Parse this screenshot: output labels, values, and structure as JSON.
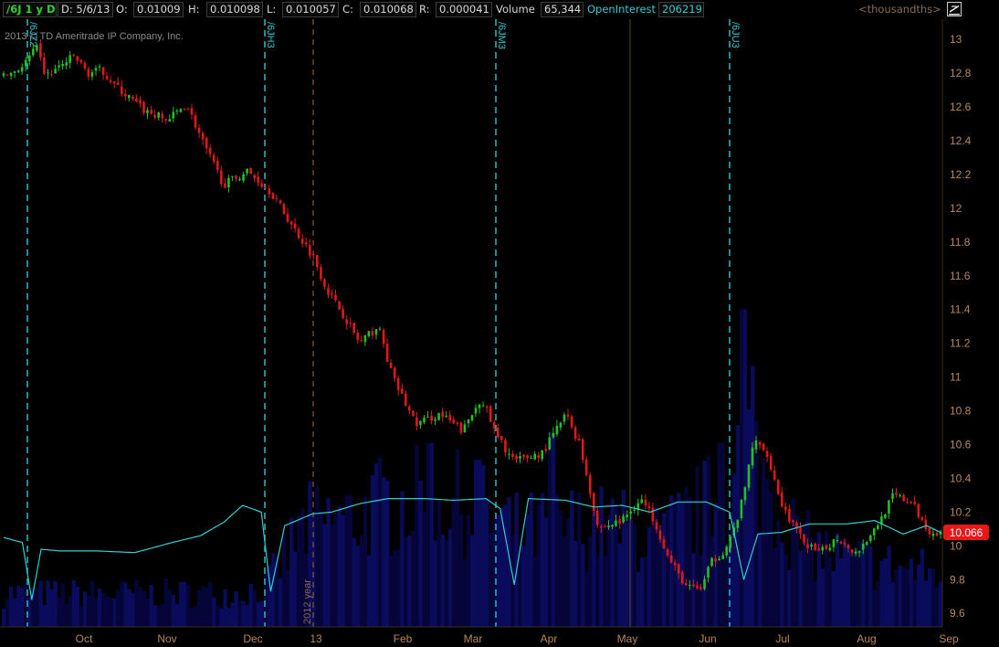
{
  "header": {
    "symbol": "/6J 1 y D",
    "date_label": "D: 5/6/13",
    "open_label": "O:",
    "open_value": "0.01009",
    "high_label": "H:",
    "high_value": "0.010098",
    "low_label": "L:",
    "low_value": "0.010057",
    "close_label": "C:",
    "close_value": "0.010068",
    "range_label": "R:",
    "range_value": "0.000041",
    "volume_label": "Volume",
    "volume_value": "65,344",
    "oi_label": "OpenInterest",
    "oi_value": "206219",
    "units": "<thousandths>"
  },
  "copyright": "2013 © TD Ameritrade IP Company, Inc.",
  "last_price": "10.066",
  "colors": {
    "up": "#22c022",
    "down": "#e01818",
    "volume": "#0b0b5c",
    "volume_dark": "#05053a",
    "open_interest": "#30d0d0",
    "axis_text": "#b8865a",
    "price_bubble": "#e81818",
    "rollover_line": "#30c8d0",
    "year_line": "#8a5a2a"
  },
  "chart_data": {
    "type": "candlestick",
    "y_axis": {
      "ticks": [
        "13",
        "12.8",
        "12.6",
        "12.4",
        "12.2",
        "12",
        "11.8",
        "11.6",
        "11.4",
        "11.2",
        "11",
        "10.8",
        "10.6",
        "10.4",
        "10.2",
        "10",
        "9.8",
        "9.6"
      ],
      "range": [
        9.52,
        13.12
      ]
    },
    "x_axis": {
      "labels": [
        "Oct",
        "Nov",
        "Dec",
        "13",
        "Feb",
        "Mar",
        "Apr",
        "May",
        "Jun",
        "Jul",
        "Aug",
        "Sep"
      ]
    },
    "rollover_markers": [
      "/6JZ2",
      "/6JH3",
      "/6JM3",
      "/6JU3"
    ],
    "year_marker": "2012 year",
    "price_path": [
      {
        "t": 0,
        "v": 12.78
      },
      {
        "t": 0.02,
        "v": 12.84
      },
      {
        "t": 0.035,
        "v": 12.95
      },
      {
        "t": 0.045,
        "v": 12.78
      },
      {
        "t": 0.075,
        "v": 12.9
      },
      {
        "t": 0.09,
        "v": 12.8
      },
      {
        "t": 0.105,
        "v": 12.82
      },
      {
        "t": 0.12,
        "v": 12.72
      },
      {
        "t": 0.15,
        "v": 12.58
      },
      {
        "t": 0.175,
        "v": 12.52
      },
      {
        "t": 0.195,
        "v": 12.62
      },
      {
        "t": 0.215,
        "v": 12.36
      },
      {
        "t": 0.235,
        "v": 12.14
      },
      {
        "t": 0.26,
        "v": 12.22
      },
      {
        "t": 0.285,
        "v": 12.1
      },
      {
        "t": 0.305,
        "v": 11.92
      },
      {
        "t": 0.33,
        "v": 11.72
      },
      {
        "t": 0.345,
        "v": 11.52
      },
      {
        "t": 0.365,
        "v": 11.35
      },
      {
        "t": 0.38,
        "v": 11.2
      },
      {
        "t": 0.4,
        "v": 11.3
      },
      {
        "t": 0.415,
        "v": 11.0
      },
      {
        "t": 0.44,
        "v": 10.72
      },
      {
        "t": 0.465,
        "v": 10.78
      },
      {
        "t": 0.49,
        "v": 10.68
      },
      {
        "t": 0.51,
        "v": 10.88
      },
      {
        "t": 0.525,
        "v": 10.66
      },
      {
        "t": 0.545,
        "v": 10.5
      },
      {
        "t": 0.575,
        "v": 10.55
      },
      {
        "t": 0.6,
        "v": 10.78
      },
      {
        "t": 0.615,
        "v": 10.6
      },
      {
        "t": 0.635,
        "v": 10.1
      },
      {
        "t": 0.66,
        "v": 10.15
      },
      {
        "t": 0.68,
        "v": 10.28
      },
      {
        "t": 0.695,
        "v": 10.15
      },
      {
        "t": 0.71,
        "v": 9.92
      },
      {
        "t": 0.73,
        "v": 9.75
      },
      {
        "t": 0.745,
        "v": 9.75
      },
      {
        "t": 0.755,
        "v": 9.9
      },
      {
        "t": 0.77,
        "v": 9.98
      },
      {
        "t": 0.78,
        "v": 10.1
      },
      {
        "t": 0.79,
        "v": 10.3
      },
      {
        "t": 0.8,
        "v": 10.62
      },
      {
        "t": 0.815,
        "v": 10.55
      },
      {
        "t": 0.83,
        "v": 10.25
      },
      {
        "t": 0.85,
        "v": 10.05
      },
      {
        "t": 0.87,
        "v": 9.95
      },
      {
        "t": 0.89,
        "v": 10.05
      },
      {
        "t": 0.91,
        "v": 9.96
      },
      {
        "t": 0.93,
        "v": 10.1
      },
      {
        "t": 0.95,
        "v": 10.3
      },
      {
        "t": 0.97,
        "v": 10.25
      },
      {
        "t": 0.985,
        "v": 10.1
      },
      {
        "t": 1.0,
        "v": 10.066
      }
    ],
    "open_interest_path": [
      {
        "t": 0,
        "v": 10.05
      },
      {
        "t": 0.02,
        "v": 10.02
      },
      {
        "t": 0.03,
        "v": 9.68
      },
      {
        "t": 0.04,
        "v": 9.98
      },
      {
        "t": 0.06,
        "v": 9.97
      },
      {
        "t": 0.1,
        "v": 9.97
      },
      {
        "t": 0.14,
        "v": 9.96
      },
      {
        "t": 0.18,
        "v": 10.02
      },
      {
        "t": 0.21,
        "v": 10.06
      },
      {
        "t": 0.235,
        "v": 10.14
      },
      {
        "t": 0.255,
        "v": 10.24
      },
      {
        "t": 0.275,
        "v": 10.2
      },
      {
        "t": 0.285,
        "v": 9.73
      },
      {
        "t": 0.3,
        "v": 10.12
      },
      {
        "t": 0.33,
        "v": 10.19
      },
      {
        "t": 0.35,
        "v": 10.2
      },
      {
        "t": 0.38,
        "v": 10.25
      },
      {
        "t": 0.41,
        "v": 10.28
      },
      {
        "t": 0.45,
        "v": 10.28
      },
      {
        "t": 0.48,
        "v": 10.27
      },
      {
        "t": 0.515,
        "v": 10.28
      },
      {
        "t": 0.53,
        "v": 10.22
      },
      {
        "t": 0.545,
        "v": 9.77
      },
      {
        "t": 0.56,
        "v": 10.28
      },
      {
        "t": 0.6,
        "v": 10.27
      },
      {
        "t": 0.63,
        "v": 10.23
      },
      {
        "t": 0.66,
        "v": 10.24
      },
      {
        "t": 0.69,
        "v": 10.2
      },
      {
        "t": 0.72,
        "v": 10.26
      },
      {
        "t": 0.75,
        "v": 10.26
      },
      {
        "t": 0.775,
        "v": 10.2
      },
      {
        "t": 0.79,
        "v": 9.8
      },
      {
        "t": 0.805,
        "v": 10.07
      },
      {
        "t": 0.83,
        "v": 10.08
      },
      {
        "t": 0.86,
        "v": 10.13
      },
      {
        "t": 0.9,
        "v": 10.13
      },
      {
        "t": 0.93,
        "v": 10.15
      },
      {
        "t": 0.96,
        "v": 10.07
      },
      {
        "t": 0.985,
        "v": 10.12
      },
      {
        "t": 1.0,
        "v": 10.08
      }
    ],
    "volume_profile": [
      {
        "t": 0,
        "v": 0.1
      },
      {
        "t": 0.25,
        "v": 0.1
      },
      {
        "t": 0.28,
        "v": 0.12
      },
      {
        "t": 0.32,
        "v": 0.3
      },
      {
        "t": 0.37,
        "v": 0.32
      },
      {
        "t": 0.4,
        "v": 0.36
      },
      {
        "t": 0.45,
        "v": 0.38
      },
      {
        "t": 0.5,
        "v": 0.36
      },
      {
        "t": 0.55,
        "v": 0.28
      },
      {
        "t": 0.6,
        "v": 0.3
      },
      {
        "t": 0.65,
        "v": 0.3
      },
      {
        "t": 0.7,
        "v": 0.26
      },
      {
        "t": 0.74,
        "v": 0.34
      },
      {
        "t": 0.77,
        "v": 0.4
      },
      {
        "t": 0.79,
        "v": 0.55
      },
      {
        "t": 0.8,
        "v": 0.5
      },
      {
        "t": 0.85,
        "v": 0.25
      },
      {
        "t": 0.9,
        "v": 0.2
      },
      {
        "t": 0.95,
        "v": 0.18
      },
      {
        "t": 1.0,
        "v": 0.16
      }
    ],
    "volume_spikes": [
      {
        "t": 0.403,
        "v": 0.42
      },
      {
        "t": 0.505,
        "v": 0.5
      },
      {
        "t": 0.585,
        "v": 0.58
      },
      {
        "t": 0.765,
        "v": 0.55
      },
      {
        "t": 0.79,
        "v": 0.95
      },
      {
        "t": 0.8,
        "v": 0.78
      },
      {
        "t": 0.455,
        "v": 0.55
      },
      {
        "t": 0.355,
        "v": 0.34
      }
    ],
    "bar_count": 255
  }
}
